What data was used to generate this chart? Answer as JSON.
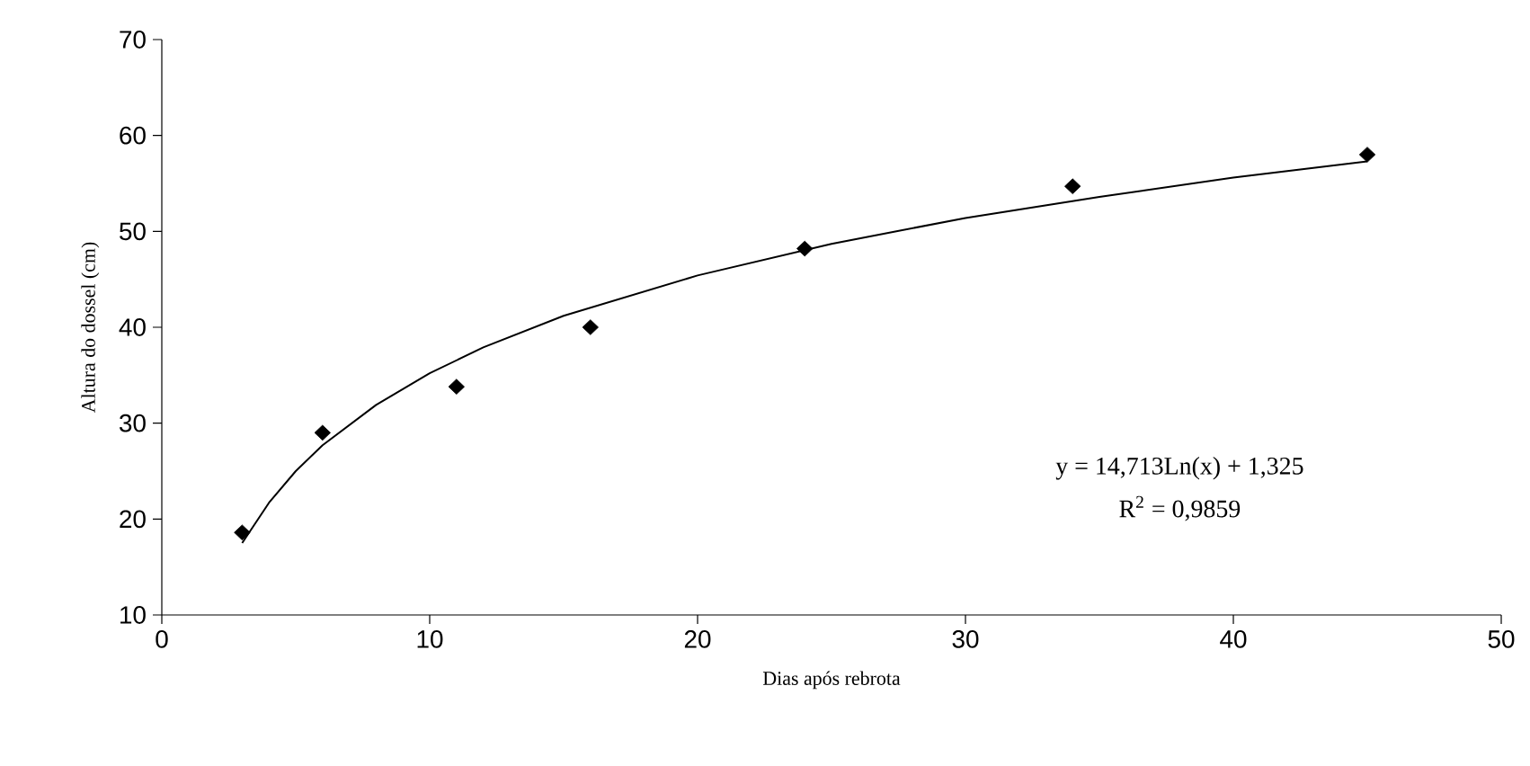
{
  "chart_data": {
    "type": "scatter",
    "xlabel": "Dias após rebrota",
    "ylabel": "Altura do dossel (cm)",
    "xlim": [
      0,
      50
    ],
    "xticks": [
      0,
      10,
      20,
      30,
      40,
      50
    ],
    "ylim": [
      10,
      70
    ],
    "yticks": [
      10,
      20,
      30,
      40,
      50,
      60,
      70
    ],
    "marker": "diamond",
    "series": [
      {
        "type": "scatter",
        "color": "#000000",
        "x": [
          3,
          6,
          11,
          16,
          24,
          34,
          45
        ],
        "values": [
          18.6,
          29,
          33.8,
          40,
          48.2,
          54.7,
          58
        ]
      },
      {
        "type": "line",
        "color": "#000000",
        "marker": "none",
        "x": [
          3,
          4,
          5,
          6,
          8,
          10,
          12,
          15,
          20,
          25,
          30,
          35,
          40,
          45
        ],
        "values": [
          17.5,
          21.7,
          25.0,
          27.7,
          31.9,
          35.2,
          37.9,
          41.2,
          45.4,
          48.7,
          51.4,
          53.6,
          55.6,
          57.3
        ]
      }
    ],
    "annotations": [
      "y = 14,713Ln(x) + 1,325",
      "R$^{2}$ = 0,9859"
    ]
  }
}
